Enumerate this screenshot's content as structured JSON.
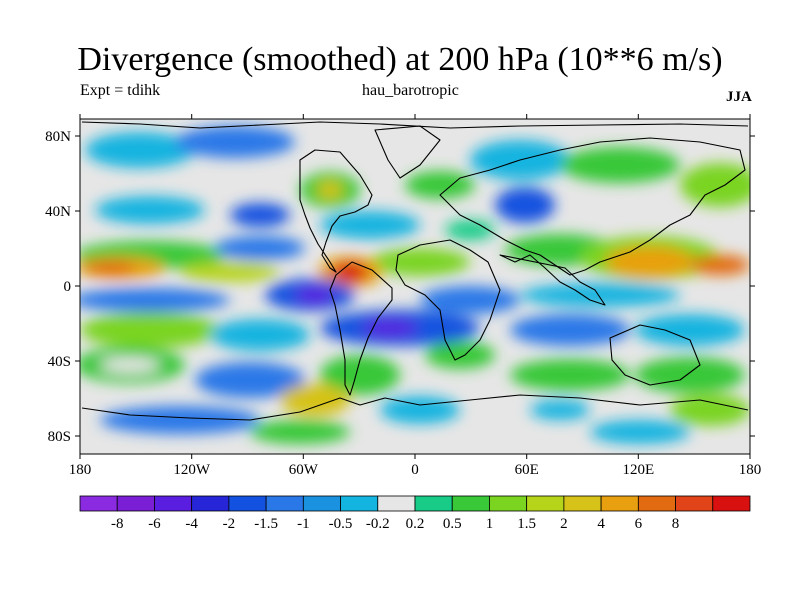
{
  "title": "Divergence (smoothed) at 200 hPa (10**6 m/s)",
  "subtitle_left": "Expt = tdihk",
  "subtitle_center": "hau_barotropic",
  "subtitle_right": "JJA",
  "lon_ticks": [
    "180",
    "120W",
    "60W",
    "0",
    "60E",
    "120E",
    "180"
  ],
  "lat_ticks": [
    "80N",
    "40N",
    "0",
    "40S",
    "80S"
  ],
  "colorbar": {
    "colors": [
      "#8a2be2",
      "#7a1fd6",
      "#5a1ee0",
      "#2626d8",
      "#1352e0",
      "#2a78e8",
      "#1a92e0",
      "#14b4e0",
      "#e6e6e6",
      "#18cc88",
      "#38c838",
      "#7ad420",
      "#b6d41a",
      "#d6c218",
      "#e8a010",
      "#e26a10",
      "#e04418",
      "#d81010"
    ],
    "labels": [
      "-8",
      "-6",
      "-4",
      "-2",
      "-1.5",
      "-1",
      "-0.5",
      "-0.2",
      "0.2",
      "0.5",
      "1",
      "1.5",
      "2",
      "4",
      "6",
      "8"
    ]
  }
}
